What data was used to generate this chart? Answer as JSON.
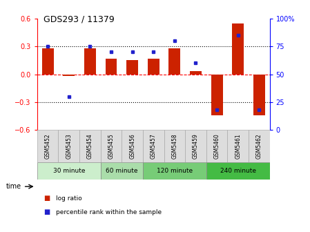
{
  "title": "GDS293 / 11379",
  "samples": [
    "GSM5452",
    "GSM5453",
    "GSM5454",
    "GSM5455",
    "GSM5456",
    "GSM5457",
    "GSM5458",
    "GSM5459",
    "GSM5460",
    "GSM5461",
    "GSM5462"
  ],
  "log_ratio": [
    0.28,
    -0.02,
    0.28,
    0.17,
    0.15,
    0.17,
    0.28,
    0.03,
    -0.44,
    0.55,
    -0.44
  ],
  "percentile_rank": [
    75,
    30,
    75,
    70,
    70,
    70,
    80,
    60,
    18,
    85,
    18
  ],
  "ylim": [
    -0.6,
    0.6
  ],
  "yticks_left": [
    -0.6,
    -0.3,
    0.0,
    0.3,
    0.6
  ],
  "yticks_right_labels": [
    "0",
    "25",
    "50",
    "75",
    "100%"
  ],
  "yticks_right_pos": [
    -0.6,
    -0.3,
    0.0,
    0.3,
    0.6
  ],
  "bar_color": "#cc2200",
  "dot_color": "#2222cc",
  "groups": [
    {
      "label": "30 minute",
      "start": 0,
      "end": 3
    },
    {
      "label": "60 minute",
      "start": 3,
      "end": 5
    },
    {
      "label": "120 minute",
      "start": 5,
      "end": 8
    },
    {
      "label": "240 minute",
      "start": 8,
      "end": 11
    }
  ],
  "group_colors": [
    "#cceecc",
    "#aaddaa",
    "#77cc77",
    "#44bb44"
  ],
  "time_label": "time",
  "legend_bar_label": "log ratio",
  "legend_dot_label": "percentile rank within the sample",
  "bar_width": 0.55,
  "sample_bg": "#dddddd",
  "sample_edge": "#aaaaaa"
}
